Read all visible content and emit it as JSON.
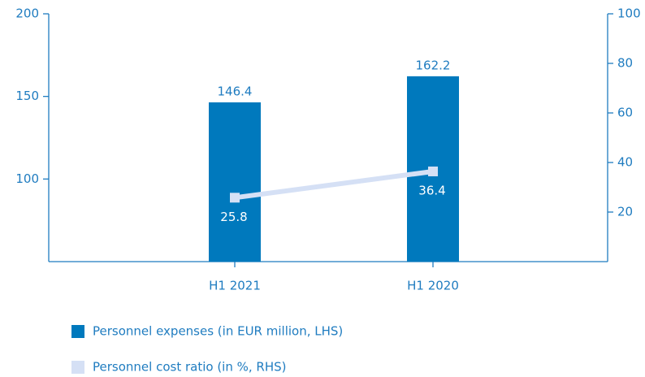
{
  "chart_data": {
    "type": "bar",
    "categories": [
      "H1 2021",
      "H1 2020"
    ],
    "series": [
      {
        "name": "Personnel expenses (in EUR million, LHS)",
        "type": "bar",
        "color": "#0079bd",
        "values": [
          146.4,
          162.2
        ]
      },
      {
        "name": "Personnel cost ratio (in %, RHS)",
        "type": "line",
        "axis": "y2",
        "color": "#d5e0f5",
        "values": [
          25.8,
          36.4
        ]
      }
    ],
    "ylim": [
      50,
      200
    ],
    "yticks": [
      100,
      150,
      200
    ],
    "y2lim": [
      0,
      100
    ],
    "y2ticks": [
      20,
      40,
      60,
      80,
      100
    ],
    "legend": "bottom"
  }
}
